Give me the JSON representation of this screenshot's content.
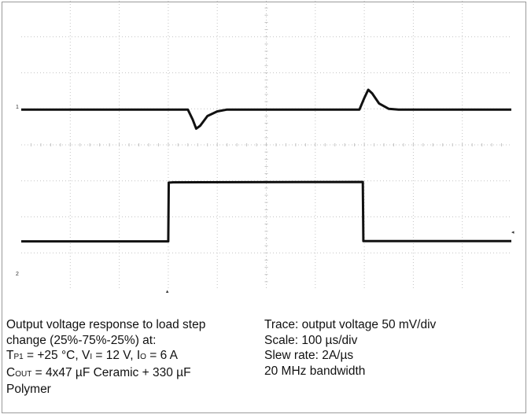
{
  "chart_data": {
    "type": "line",
    "title": "",
    "xlabel": "",
    "ylabel": "",
    "x_divisions": 10,
    "y_divisions": 8,
    "grid": true,
    "colors": {
      "trace": "#111111",
      "grid": "#c4c4c4"
    },
    "x_range_us": [
      0,
      1000
    ],
    "series": [
      {
        "name": "",
        "unit": "div",
        "points": [
          [
            0,
            4.98
          ],
          [
            150,
            4.98
          ],
          [
            300,
            4.98
          ],
          [
            340,
            4.98
          ],
          [
            350,
            4.7
          ],
          [
            357,
            4.45
          ],
          [
            365,
            4.53
          ],
          [
            380,
            4.8
          ],
          [
            400,
            4.93
          ],
          [
            420,
            4.98
          ],
          [
            600,
            4.98
          ],
          [
            690,
            4.98
          ],
          [
            700,
            5.3
          ],
          [
            708,
            5.53
          ],
          [
            716,
            5.43
          ],
          [
            730,
            5.15
          ],
          [
            750,
            5.0
          ],
          [
            770,
            4.98
          ],
          [
            1000,
            4.98
          ]
        ]
      },
      {
        "name": "",
        "unit": "div",
        "points": [
          [
            0,
            1.32
          ],
          [
            298,
            1.32
          ],
          [
            300,
            1.32
          ],
          [
            301,
            2.95
          ],
          [
            310,
            2.96
          ],
          [
            696,
            2.97
          ],
          [
            697,
            2.97
          ],
          [
            698,
            1.33
          ],
          [
            1000,
            1.33
          ]
        ]
      }
    ],
    "markers": {
      "ch1_left": "1",
      "ch2_left": "2",
      "trigger_right": "◂",
      "trigger_bottom": "▴"
    }
  },
  "caption": {
    "left_lines": [
      {
        "segments": [
          {
            "text": "Output voltage response to load step"
          }
        ]
      },
      {
        "segments": [
          {
            "text": "change (25%-75%-25%) at:"
          }
        ]
      },
      {
        "segments": [
          {
            "text": "T"
          },
          {
            "text": "P1",
            "sub": true
          },
          {
            "text": " = +25 °C, V"
          },
          {
            "text": "I",
            "sub": true
          },
          {
            "text": " = 12 V, I"
          },
          {
            "text": "O",
            "sub": true
          },
          {
            "text": " = 6 A"
          }
        ]
      },
      {
        "segments": [
          {
            "text": "C"
          },
          {
            "text": "OUT",
            "sub": true
          },
          {
            "text": " = 4x47 µF Ceramic + 330 µF"
          }
        ]
      },
      {
        "segments": [
          {
            "text": "Polymer"
          }
        ]
      }
    ],
    "right_lines": [
      {
        "segments": [
          {
            "text": "Trace: output voltage 50 mV/div"
          }
        ]
      },
      {
        "segments": [
          {
            "text": "Scale: 100 µs/div"
          }
        ]
      },
      {
        "segments": [
          {
            "text": "Slew rate: 2A/µs"
          }
        ]
      },
      {
        "segments": [
          {
            "text": "20 MHz bandwidth"
          }
        ]
      }
    ]
  }
}
